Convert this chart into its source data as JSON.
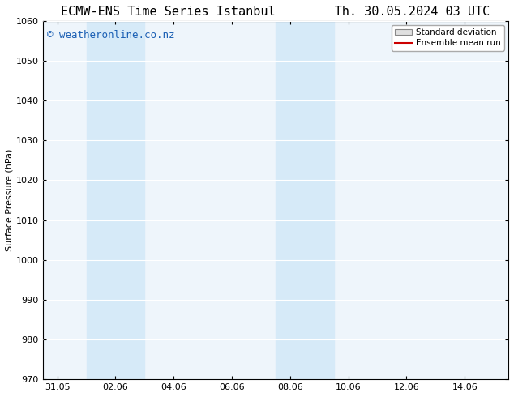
{
  "title_left": "ECMW-ENS Time Series Istanbul",
  "title_right": "Th. 30.05.2024 03 UTC",
  "ylabel": "Surface Pressure (hPa)",
  "ylim": [
    970,
    1060
  ],
  "yticks": [
    970,
    980,
    990,
    1000,
    1010,
    1020,
    1030,
    1040,
    1050,
    1060
  ],
  "xlabel_ticks": [
    "31.05",
    "02.06",
    "04.06",
    "06.06",
    "08.06",
    "10.06",
    "12.06",
    "14.06"
  ],
  "x_tick_positions": [
    0,
    2,
    4,
    6,
    8,
    10,
    12,
    14
  ],
  "xmin": -0.5,
  "xmax": 15.5,
  "shaded_regions": [
    {
      "xmin": 1.0,
      "xmax": 3.0,
      "color": "#d6eaf8"
    },
    {
      "xmin": 7.5,
      "xmax": 9.5,
      "color": "#d6eaf8"
    }
  ],
  "watermark_text": "© weatheronline.co.nz",
  "watermark_color": "#1a5fb4",
  "watermark_fontsize": 9,
  "legend_std_label": "Standard deviation",
  "legend_ens_label": "Ensemble mean run",
  "legend_std_facecolor": "#e0e0e0",
  "legend_std_edgecolor": "#888888",
  "legend_ens_color": "#cc0000",
  "bg_color": "#ffffff",
  "plot_bg_color": "#eef5fb",
  "title_fontsize": 11,
  "tick_label_fontsize": 8,
  "ylabel_fontsize": 8,
  "grid_color": "#ffffff",
  "spine_color": "#000000"
}
